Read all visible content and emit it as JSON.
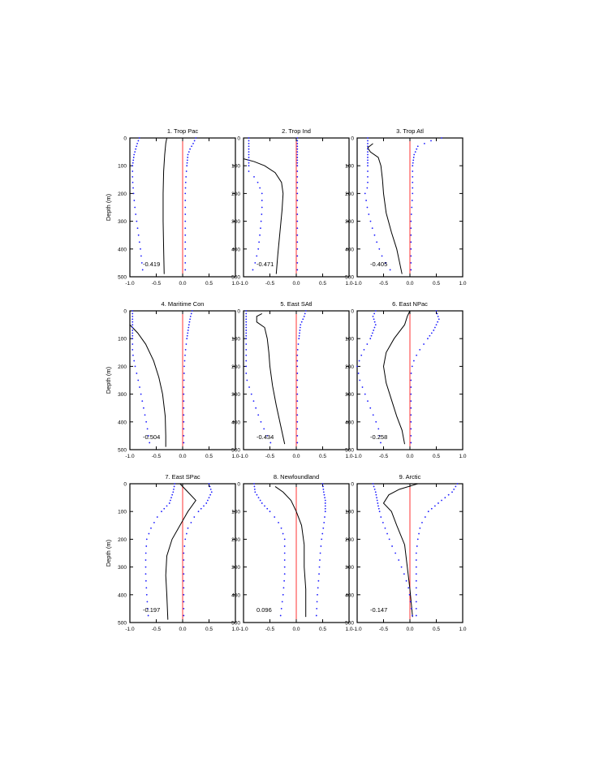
{
  "chart_data": {
    "type": "line",
    "xlim": [
      -1.0,
      1.0
    ],
    "ylim": [
      0,
      500
    ],
    "ylabel": "Depth (m)",
    "xticks": [
      "-1.0",
      "-0.5",
      "0.0",
      "0.5",
      "1.0"
    ],
    "yticks": [
      "0",
      "100",
      "200",
      "300",
      "400",
      "500"
    ],
    "grid": false,
    "zero_line_color": "#ff3333",
    "mean_line_color": "#000000",
    "bounds_dot_color": "#1a1aff",
    "depths": [
      0,
      10,
      20,
      30,
      40,
      50,
      60,
      70,
      80,
      90,
      100,
      120,
      140,
      160,
      180,
      200,
      225,
      250,
      275,
      300,
      325,
      350,
      375,
      400,
      425,
      450,
      475,
      500
    ],
    "panels": [
      {
        "title": "1. Trop Pac",
        "annotation": "-0.419",
        "mean": [
          [
            -0.3,
            0
          ],
          [
            -0.32,
            20
          ],
          [
            -0.34,
            60
          ],
          [
            -0.36,
            120
          ],
          [
            -0.37,
            200
          ],
          [
            -0.37,
            300
          ],
          [
            -0.36,
            400
          ],
          [
            -0.35,
            490
          ]
        ],
        "upper": [
          [
            0.25,
            0
          ],
          [
            0.2,
            20
          ],
          [
            0.14,
            40
          ],
          [
            0.1,
            60
          ],
          [
            0.08,
            100
          ],
          [
            0.06,
            150
          ],
          [
            0.05,
            200
          ],
          [
            0.05,
            300
          ],
          [
            0.05,
            400
          ],
          [
            0.05,
            490
          ]
        ],
        "lower": [
          [
            -0.82,
            0
          ],
          [
            -0.86,
            20
          ],
          [
            -0.92,
            60
          ],
          [
            -0.95,
            100
          ],
          [
            -0.95,
            150
          ],
          [
            -0.93,
            200
          ],
          [
            -0.9,
            260
          ],
          [
            -0.85,
            330
          ],
          [
            -0.8,
            400
          ],
          [
            -0.75,
            490
          ]
        ]
      },
      {
        "title": "2. Trop Ind",
        "annotation": "-0.471",
        "mean": [
          [
            -1.0,
            75
          ],
          [
            -0.8,
            85
          ],
          [
            -0.6,
            100
          ],
          [
            -0.4,
            125
          ],
          [
            -0.28,
            160
          ],
          [
            -0.25,
            200
          ],
          [
            -0.27,
            260
          ],
          [
            -0.31,
            340
          ],
          [
            -0.35,
            420
          ],
          [
            -0.38,
            490
          ]
        ],
        "upper": [
          [
            0.02,
            0
          ],
          [
            0.02,
            100
          ],
          [
            0.02,
            200
          ],
          [
            0.02,
            300
          ],
          [
            0.02,
            400
          ],
          [
            0.02,
            490
          ]
        ],
        "lower": [
          [
            -0.9,
            120
          ],
          [
            -0.75,
            150
          ],
          [
            -0.65,
            200
          ],
          [
            -0.65,
            260
          ],
          [
            -0.68,
            330
          ],
          [
            -0.72,
            400
          ],
          [
            -0.78,
            450
          ],
          [
            -0.85,
            490
          ]
        ]
      },
      {
        "title": "3. Trop Atl",
        "annotation": "-0.405",
        "mean": [
          [
            -0.7,
            20
          ],
          [
            -0.8,
            35
          ],
          [
            -0.75,
            50
          ],
          [
            -0.6,
            70
          ],
          [
            -0.55,
            100
          ],
          [
            -0.52,
            150
          ],
          [
            -0.5,
            200
          ],
          [
            -0.45,
            270
          ],
          [
            -0.35,
            340
          ],
          [
            -0.25,
            400
          ],
          [
            -0.15,
            490
          ]
        ],
        "upper": [
          [
            0.6,
            0
          ],
          [
            0.4,
            10
          ],
          [
            0.15,
            30
          ],
          [
            0.08,
            60
          ],
          [
            0.05,
            100
          ],
          [
            0.05,
            150
          ],
          [
            0.05,
            200
          ],
          [
            0.02,
            300
          ],
          [
            0.02,
            400
          ],
          [
            0.02,
            490
          ]
        ],
        "lower": [
          [
            -0.8,
            175
          ],
          [
            -0.85,
            200
          ],
          [
            -0.8,
            260
          ],
          [
            -0.72,
            320
          ],
          [
            -0.62,
            380
          ],
          [
            -0.52,
            430
          ],
          [
            -0.4,
            470
          ],
          [
            -0.3,
            490
          ]
        ]
      },
      {
        "title": "4. Maritime Con",
        "annotation": "-0.504",
        "mean": [
          [
            -1.0,
            50
          ],
          [
            -0.85,
            80
          ],
          [
            -0.7,
            120
          ],
          [
            -0.55,
            180
          ],
          [
            -0.45,
            240
          ],
          [
            -0.38,
            300
          ],
          [
            -0.33,
            380
          ],
          [
            -0.32,
            450
          ],
          [
            -0.32,
            490
          ]
        ],
        "upper": [
          [
            0.18,
            0
          ],
          [
            0.15,
            20
          ],
          [
            0.12,
            50
          ],
          [
            0.08,
            100
          ],
          [
            0.05,
            150
          ],
          [
            0.03,
            200
          ],
          [
            0.02,
            300
          ],
          [
            0.02,
            400
          ],
          [
            0.02,
            490
          ]
        ],
        "lower": [
          [
            -0.95,
            150
          ],
          [
            -0.9,
            200
          ],
          [
            -0.82,
            270
          ],
          [
            -0.75,
            340
          ],
          [
            -0.68,
            410
          ],
          [
            -0.63,
            470
          ],
          [
            -0.62,
            490
          ]
        ]
      },
      {
        "title": "5. East SAtl",
        "annotation": "-0.434",
        "mean": [
          [
            -0.65,
            10
          ],
          [
            -0.75,
            20
          ],
          [
            -0.75,
            40
          ],
          [
            -0.6,
            60
          ],
          [
            -0.55,
            100
          ],
          [
            -0.52,
            150
          ],
          [
            -0.5,
            200
          ],
          [
            -0.45,
            270
          ],
          [
            -0.38,
            340
          ],
          [
            -0.3,
            410
          ],
          [
            -0.22,
            480
          ]
        ],
        "upper": [
          [
            0.18,
            0
          ],
          [
            0.15,
            20
          ],
          [
            0.08,
            50
          ],
          [
            0.05,
            100
          ],
          [
            0.02,
            150
          ],
          [
            0.02,
            200
          ],
          [
            0.02,
            300
          ],
          [
            0.02,
            400
          ],
          [
            0.02,
            490
          ]
        ],
        "lower": [
          [
            -0.95,
            240
          ],
          [
            -0.85,
            300
          ],
          [
            -0.75,
            360
          ],
          [
            -0.65,
            410
          ],
          [
            -0.55,
            450
          ],
          [
            -0.45,
            490
          ]
        ]
      },
      {
        "title": "6. East NPac",
        "annotation": "-0.258",
        "mean": [
          [
            0.0,
            0
          ],
          [
            -0.05,
            20
          ],
          [
            -0.1,
            50
          ],
          [
            -0.3,
            100
          ],
          [
            -0.45,
            150
          ],
          [
            -0.5,
            200
          ],
          [
            -0.45,
            260
          ],
          [
            -0.35,
            320
          ],
          [
            -0.25,
            380
          ],
          [
            -0.15,
            430
          ],
          [
            -0.1,
            480
          ]
        ],
        "upper": [
          [
            0.5,
            0
          ],
          [
            0.55,
            30
          ],
          [
            0.45,
            70
          ],
          [
            0.3,
            110
          ],
          [
            0.15,
            150
          ],
          [
            0.05,
            190
          ],
          [
            0.02,
            230
          ],
          [
            0.02,
            300
          ],
          [
            0.02,
            400
          ],
          [
            0.02,
            490
          ]
        ],
        "lower": [
          [
            -0.65,
            0
          ],
          [
            -0.7,
            20
          ],
          [
            -0.65,
            50
          ],
          [
            -0.75,
            100
          ],
          [
            -0.9,
            150
          ],
          [
            -1.0,
            200
          ],
          [
            -0.95,
            250
          ],
          [
            -0.85,
            300
          ],
          [
            -0.75,
            350
          ],
          [
            -0.6,
            420
          ],
          [
            -0.55,
            480
          ]
        ]
      },
      {
        "title": "7. East SPac",
        "annotation": "-0.197",
        "mean": [
          [
            -0.05,
            0
          ],
          [
            0.1,
            30
          ],
          [
            0.25,
            60
          ],
          [
            0.1,
            100
          ],
          [
            -0.05,
            150
          ],
          [
            -0.2,
            200
          ],
          [
            -0.3,
            260
          ],
          [
            -0.32,
            330
          ],
          [
            -0.3,
            400
          ],
          [
            -0.28,
            490
          ]
        ],
        "upper": [
          [
            0.5,
            0
          ],
          [
            0.55,
            30
          ],
          [
            0.45,
            70
          ],
          [
            0.25,
            110
          ],
          [
            0.1,
            160
          ],
          [
            0.05,
            200
          ],
          [
            0.02,
            250
          ],
          [
            0.02,
            350
          ],
          [
            0.02,
            490
          ]
        ],
        "lower": [
          [
            -0.15,
            0
          ],
          [
            -0.18,
            30
          ],
          [
            -0.25,
            70
          ],
          [
            -0.45,
            110
          ],
          [
            -0.6,
            160
          ],
          [
            -0.68,
            200
          ],
          [
            -0.7,
            260
          ],
          [
            -0.7,
            330
          ],
          [
            -0.68,
            400
          ],
          [
            -0.65,
            480
          ]
        ]
      },
      {
        "title": "8. Newfoundland",
        "annotation": "0.096",
        "mean": [
          [
            -0.4,
            10
          ],
          [
            -0.25,
            30
          ],
          [
            -0.1,
            60
          ],
          [
            0.0,
            100
          ],
          [
            0.1,
            150
          ],
          [
            0.15,
            220
          ],
          [
            0.15,
            300
          ],
          [
            0.18,
            380
          ],
          [
            0.18,
            480
          ]
        ],
        "upper": [
          [
            0.5,
            0
          ],
          [
            0.52,
            30
          ],
          [
            0.55,
            60
          ],
          [
            0.55,
            100
          ],
          [
            0.52,
            150
          ],
          [
            0.48,
            200
          ],
          [
            0.45,
            260
          ],
          [
            0.43,
            330
          ],
          [
            0.4,
            400
          ],
          [
            0.38,
            480
          ]
        ],
        "lower": [
          [
            -0.8,
            0
          ],
          [
            -0.78,
            30
          ],
          [
            -0.65,
            70
          ],
          [
            -0.45,
            110
          ],
          [
            -0.3,
            150
          ],
          [
            -0.22,
            200
          ],
          [
            -0.22,
            260
          ],
          [
            -0.22,
            330
          ],
          [
            -0.25,
            400
          ],
          [
            -0.3,
            480
          ]
        ]
      },
      {
        "title": "9. Arctic",
        "annotation": "-0.147",
        "mean": [
          [
            0.15,
            0
          ],
          [
            -0.2,
            20
          ],
          [
            -0.4,
            40
          ],
          [
            -0.5,
            70
          ],
          [
            -0.35,
            100
          ],
          [
            -0.25,
            150
          ],
          [
            -0.1,
            220
          ],
          [
            -0.05,
            300
          ],
          [
            0.0,
            380
          ],
          [
            0.05,
            480
          ]
        ],
        "upper": [
          [
            0.9,
            0
          ],
          [
            0.8,
            30
          ],
          [
            0.6,
            60
          ],
          [
            0.35,
            100
          ],
          [
            0.2,
            150
          ],
          [
            0.15,
            200
          ],
          [
            0.12,
            250
          ],
          [
            0.12,
            300
          ],
          [
            0.12,
            380
          ],
          [
            0.12,
            480
          ]
        ],
        "lower": [
          [
            -0.7,
            0
          ],
          [
            -0.65,
            30
          ],
          [
            -0.6,
            80
          ],
          [
            -0.55,
            120
          ],
          [
            -0.45,
            170
          ],
          [
            -0.35,
            220
          ],
          [
            -0.2,
            280
          ],
          [
            -0.1,
            330
          ],
          [
            -0.02,
            380
          ],
          [
            0.02,
            440
          ],
          [
            0.05,
            480
          ]
        ]
      }
    ]
  }
}
